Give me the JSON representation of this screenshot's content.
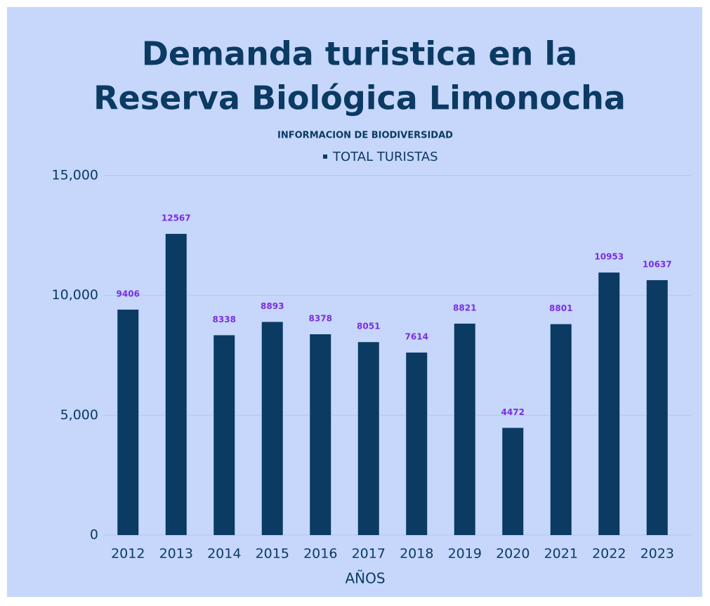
{
  "chart_data": {
    "type": "bar",
    "title": [
      "Demanda turistica en la",
      "Reserva Biológica Limonocha"
    ],
    "subtitle": "INFORMACION DE BIODIVERSIDAD",
    "x_label": "AÑOS",
    "categories": [
      "2012",
      "2013",
      "2014",
      "2015",
      "2016",
      "2017",
      "2018",
      "2019",
      "2020",
      "2021",
      "2022",
      "2023"
    ],
    "series": [
      {
        "name": "TOTAL TURISTAS",
        "color": "#0b3a63",
        "values": [
          9406,
          12567,
          8338,
          8893,
          8378,
          8051,
          7614,
          8821,
          4472,
          8801,
          10953,
          10637
        ]
      }
    ],
    "value_label_color": "#7a2ee0",
    "ylim": [
      0,
      15000
    ],
    "yticks": [
      0,
      {
        "value": 5000,
        "label": "5,000"
      },
      {
        "value": 10000,
        "label": "10,000"
      },
      {
        "value": 15000,
        "label": "15,000"
      }
    ],
    "grid": true,
    "legend": "top"
  }
}
